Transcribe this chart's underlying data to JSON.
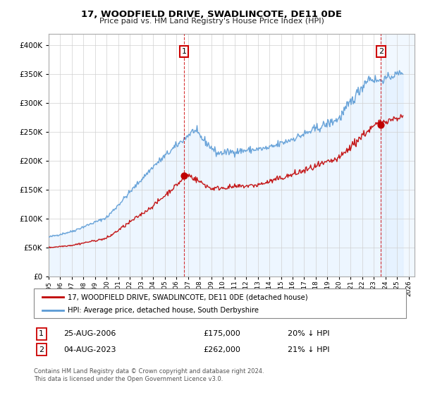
{
  "title": "17, WOODFIELD DRIVE, SWADLINCOTE, DE11 0DE",
  "subtitle": "Price paid vs. HM Land Registry's House Price Index (HPI)",
  "legend_line1": "17, WOODFIELD DRIVE, SWADLINCOTE, DE11 0DE (detached house)",
  "legend_line2": "HPI: Average price, detached house, South Derbyshire",
  "annotation1_label": "1",
  "annotation1_date": "25-AUG-2006",
  "annotation1_price": "£175,000",
  "annotation1_hpi": "20% ↓ HPI",
  "annotation1_year": 2006.65,
  "annotation1_value": 175000,
  "annotation2_label": "2",
  "annotation2_date": "04-AUG-2023",
  "annotation2_price": "£262,000",
  "annotation2_hpi": "21% ↓ HPI",
  "annotation2_year": 2023.6,
  "annotation2_value": 262000,
  "hpi_color": "#5b9bd5",
  "hpi_fill_color": "#ddeeff",
  "price_color": "#c00000",
  "dashed_color": "#cc0000",
  "background_color": "#ffffff",
  "grid_color": "#d0d0d0",
  "ylim": [
    0,
    420000
  ],
  "xlim_start": 1995,
  "xlim_end": 2026.5,
  "footnote1": "Contains HM Land Registry data © Crown copyright and database right 2024.",
  "footnote2": "This data is licensed under the Open Government Licence v3.0."
}
